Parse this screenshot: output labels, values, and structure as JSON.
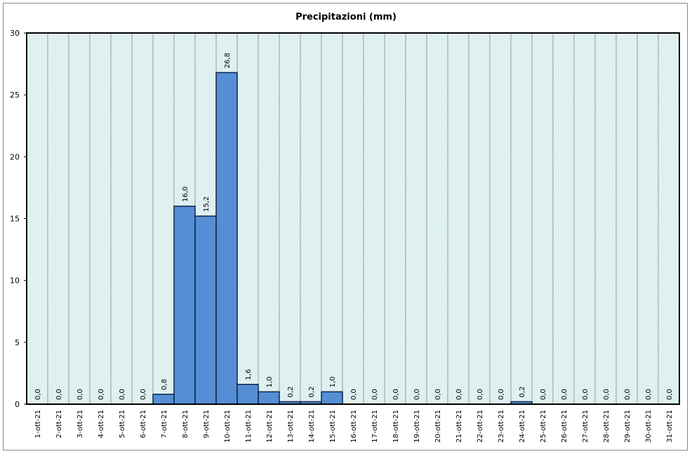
{
  "chart_data": {
    "type": "bar",
    "title": "Precipitazioni (mm)",
    "xlabel": "",
    "ylabel": "",
    "ylim": [
      0,
      30
    ],
    "yticks": [
      "0",
      "5",
      "10",
      "15",
      "20",
      "25",
      "30"
    ],
    "grid": true,
    "legend": "none",
    "categories": [
      "1-ott-21",
      "2-ott-21",
      "3-ott-21",
      "4-ott-21",
      "5-ott-21",
      "6-ott-21",
      "7-ott-21",
      "8-ott-21",
      "9-ott-21",
      "10-ott-21",
      "11-ott-21",
      "12-ott-21",
      "13-ott-21",
      "14-ott-21",
      "15-ott-21",
      "16-ott-21",
      "17-ott-21",
      "18-ott-21",
      "19-ott-21",
      "20-ott-21",
      "21-ott-21",
      "22-ott-21",
      "23-ott-21",
      "24-ott-21",
      "25-ott-21",
      "26-ott-21",
      "27-ott-21",
      "28-ott-21",
      "29-ott-21",
      "30-ott-21",
      "31-ott-21"
    ],
    "values": [
      0,
      0,
      0,
      0,
      0,
      0,
      0.8,
      16.0,
      15.2,
      26.8,
      1.6,
      1.0,
      0.2,
      0.2,
      1.0,
      0,
      0,
      0,
      0,
      0,
      0,
      0,
      0,
      0.2,
      0,
      0,
      0,
      0,
      0,
      0,
      0
    ],
    "value_labels": [
      "0,0",
      "0,0",
      "0,0",
      "0,0",
      "0,0",
      "0,0",
      "0,8",
      "16,0",
      "15,2",
      "26,8",
      "1,6",
      "1,0",
      "0,2",
      "0,2",
      "1,0",
      "0,0",
      "0,0",
      "0,0",
      "0,0",
      "0,0",
      "0,0",
      "0,0",
      "0,0",
      "0,2",
      "0,0",
      "0,0",
      "0,0",
      "0,0",
      "0,0",
      "0,0",
      "0,0"
    ],
    "colors": {
      "bar_fill": "#558ed5",
      "bar_stroke": "#0f2447",
      "plot_background": "#dcefef",
      "gridline": "#9a9a9a",
      "frame": "#000000"
    }
  }
}
